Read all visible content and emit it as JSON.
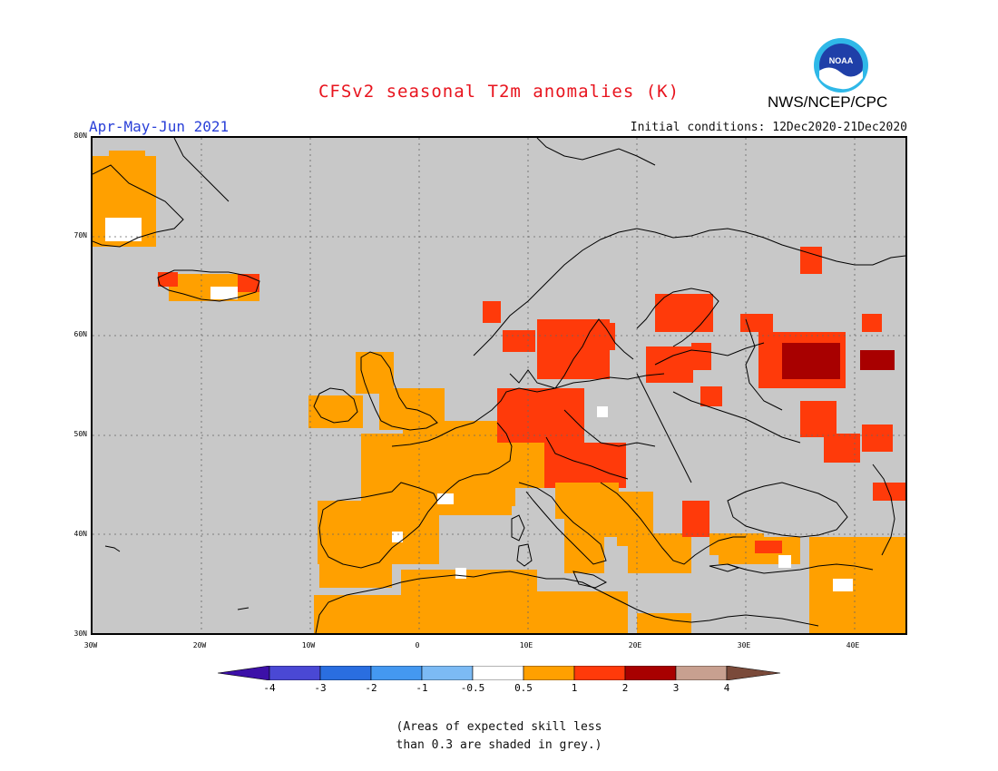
{
  "title": "CFSv2 seasonal T2m anomalies (K)",
  "organization": "NWS/NCEP/CPC",
  "logo_text": "NOAA",
  "period": "Apr-May-Jun 2021",
  "initial_conditions": "Initial conditions: 12Dec2020-21Dec2020",
  "note_line1": "(Areas of expected skill less",
  "note_line2": "than 0.3 are shaded in grey.)",
  "map": {
    "lon_range": [
      -30,
      45
    ],
    "lat_range": [
      30,
      80
    ],
    "lat_labels": [
      "80N",
      "70N",
      "60N",
      "50N",
      "40N",
      "30N"
    ],
    "lon_labels": [
      "30W",
      "20W",
      "10W",
      "0",
      "10E",
      "20E",
      "30E",
      "40E"
    ],
    "grey_color": "#c8c8c8"
  },
  "legend": {
    "tick_labels": [
      "-4",
      "-3",
      "-2",
      "-1",
      "-0.5",
      "0.5",
      "1",
      "2",
      "3",
      "4"
    ],
    "colors": [
      "#3c10a8",
      "#4a48d4",
      "#2a6ee0",
      "#4498f0",
      "#7cbaf4",
      "#ffffff",
      "#ffa000",
      "#ff3a0a",
      "#a80000",
      "#c8a090",
      "#7a4a3a"
    ]
  },
  "anomaly_colors": {
    "c05_1": "#ffa000",
    "c1_2": "#ff3a0a",
    "c2_3": "#a80000",
    "neutral": "#ffffff"
  }
}
